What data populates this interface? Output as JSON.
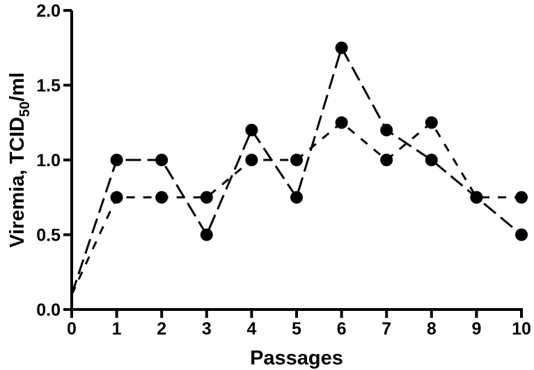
{
  "chart_data": {
    "type": "line",
    "xlabel": "Passages",
    "ylabel": {
      "main": "Viremia, TCID",
      "sub": "50",
      "tail": "/ml"
    },
    "x": [
      0,
      1,
      2,
      3,
      4,
      5,
      6,
      7,
      8,
      9,
      10
    ],
    "series": [
      {
        "color": "#000000",
        "dash": "22,9",
        "values": [
          0.1,
          1.0,
          1.0,
          0.5,
          1.2,
          0.75,
          1.75,
          1.2,
          1.0,
          0.75,
          0.5
        ]
      },
      {
        "color": "#000000",
        "dash": "12,12",
        "values": [
          0.1,
          0.75,
          0.75,
          0.75,
          1.0,
          1.0,
          1.25,
          1.0,
          1.25,
          0.75,
          0.75
        ]
      }
    ],
    "xlim": [
      0,
      10
    ],
    "xticks": [
      0,
      1,
      2,
      3,
      4,
      5,
      6,
      7,
      8,
      9,
      10
    ],
    "ylim": [
      0,
      2
    ],
    "yticks": [
      {
        "value": 0,
        "label": "0.0"
      },
      0.5,
      {
        "value": 1,
        "label": "1.0"
      },
      1.5,
      {
        "value": 2,
        "label": "2.0"
      }
    ],
    "grid": false
  }
}
